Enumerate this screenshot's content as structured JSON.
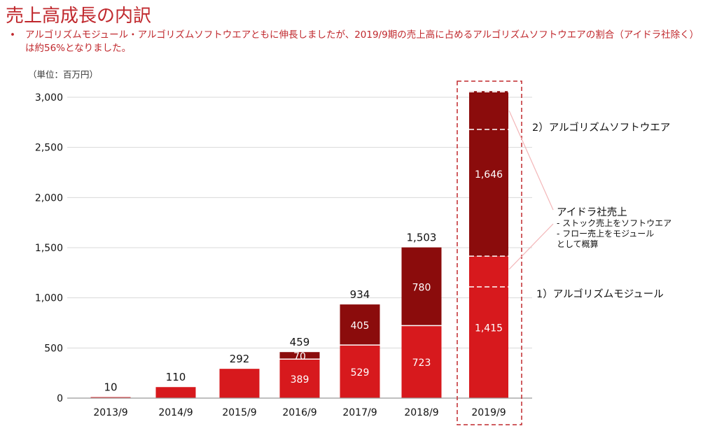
{
  "title": "売上高成長の内訳",
  "bullet": {
    "marker": "•",
    "text": "アルゴリズムモジュール・アルゴリズムソフトウエアともに伸長しましたが、2019/9期の売上高に占めるアルゴリズムソフトウエアの割合（アイドラ社除く）は約56%となりました。"
  },
  "unit_label": "（単位：百万円）",
  "annotations": {
    "software": "2）アルゴリズムソフトウエア",
    "module": "1）アルゴリズムモジュール",
    "aidora_title": "アイドラ社売上",
    "aidora_line1": "- ストック売上をソフトウエア",
    "aidora_line2": "- フロー売上をモジュール",
    "aidora_line3": "として概算"
  },
  "colors": {
    "module": "#d7191d",
    "software": "#8b0c0c",
    "highlight_border": "#c0282d",
    "connector": "#f3b6b8"
  },
  "chart_data": {
    "type": "bar",
    "stacked": true,
    "categories": [
      "2013/9",
      "2014/9",
      "2015/9",
      "2016/9",
      "2017/9",
      "2018/9",
      "2019/9"
    ],
    "series": [
      {
        "values": [
          10,
          110,
          292,
          389,
          529,
          723,
          1415
        ]
      },
      {
        "values": [
          0,
          0,
          0,
          70,
          405,
          780,
          1646
        ]
      }
    ],
    "totals": [
      10,
      110,
      292,
      459,
      934,
      1503,
      null
    ],
    "segment_labels": [
      [
        "10",
        "110",
        "292",
        "389",
        "529",
        "723",
        "1,415"
      ],
      [
        "",
        "",
        "",
        "70",
        "405",
        "780",
        "1,646"
      ]
    ],
    "yticks": [
      0,
      500,
      1000,
      1500,
      2000,
      2500,
      3000
    ],
    "ytick_labels": [
      "0",
      "500",
      "1,000",
      "1,500",
      "2,000",
      "2,500",
      "3,000"
    ],
    "ylim": [
      0,
      3000
    ],
    "xlabel": "",
    "ylabel": "",
    "highlighted_category": "2019/9",
    "grid": true
  }
}
